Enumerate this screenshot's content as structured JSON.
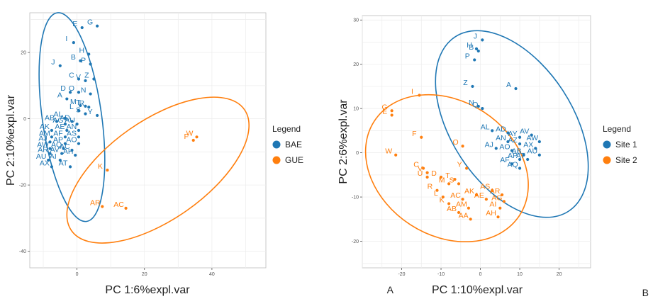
{
  "chart_data": [
    {
      "type": "scatter",
      "panel_label": "A",
      "xlabel": "PC 1:6%expl.var",
      "ylabel": "PC 2:10%expl.var",
      "xlim": [
        -14,
        56
      ],
      "ylim": [
        -45,
        32
      ],
      "x_ticks": [
        0,
        20,
        40
      ],
      "y_ticks": [
        -40,
        -20,
        0,
        20
      ],
      "grid": true,
      "legend": {
        "title": "Legend",
        "position": "right"
      },
      "series": [
        {
          "name": "BAE",
          "color": "#1f77b4",
          "points": [
            {
              "label": "E",
              "x": 1.5,
              "y": 27.5
            },
            {
              "label": "G",
              "x": 6.0,
              "y": 28.0
            },
            {
              "label": "I",
              "x": -1.0,
              "y": 23.0
            },
            {
              "label": "H",
              "x": 3.5,
              "y": 19.5
            },
            {
              "label": "B",
              "x": 1.0,
              "y": 17.5
            },
            {
              "label": "P",
              "x": 4.0,
              "y": 16.5
            },
            {
              "label": "J",
              "x": -5.0,
              "y": 16.0
            },
            {
              "label": "C",
              "x": 0.5,
              "y": 12.0
            },
            {
              "label": "V",
              "x": 2.5,
              "y": 11.5
            },
            {
              "label": "Z",
              "x": 5.0,
              "y": 12.0
            },
            {
              "label": "D",
              "x": -2.0,
              "y": 8.0
            },
            {
              "label": "O",
              "x": 0.5,
              "y": 8.0
            },
            {
              "label": "N",
              "x": 4.0,
              "y": 7.5
            },
            {
              "label": "A",
              "x": -3.0,
              "y": 6.0
            },
            {
              "label": "M",
              "x": 1.0,
              "y": 4.0
            },
            {
              "label": "T",
              "x": 2.5,
              "y": 3.8
            },
            {
              "label": "R",
              "x": 3.5,
              "y": 3.5
            },
            {
              "label": "L",
              "x": 0.5,
              "y": 2.5
            },
            {
              "label": "S",
              "x": 2.5,
              "y": 1.5
            },
            {
              "label": "Y",
              "x": 6.0,
              "y": 1.0
            },
            {
              "label": "AL",
              "x": -3.5,
              "y": 0.2
            },
            {
              "label": "AB",
              "x": -6.0,
              "y": -0.8
            },
            {
              "label": "AD",
              "x": -1.5,
              "y": -0.8
            },
            {
              "label": "AG",
              "x": -3.5,
              "y": -1.6
            },
            {
              "label": "AU",
              "x": 0.0,
              "y": -1.6
            },
            {
              "label": "AK",
              "x": -7.5,
              "y": -3.5
            },
            {
              "label": "AE",
              "x": -3.0,
              "y": -3.5
            },
            {
              "label": "AN",
              "x": 0.5,
              "y": -3.5
            },
            {
              "label": "AM",
              "x": -7.5,
              "y": -5.5
            },
            {
              "label": "AF",
              "x": -3.5,
              "y": -5.5
            },
            {
              "label": "AS",
              "x": 0.5,
              "y": -5.5
            },
            {
              "label": "AJ",
              "x": -8.0,
              "y": -7.0
            },
            {
              "label": "AP",
              "x": -3.5,
              "y": -7.5
            },
            {
              "label": "AO",
              "x": 0.5,
              "y": -7.5
            },
            {
              "label": "AW",
              "x": -8.0,
              "y": -9.0
            },
            {
              "label": "AQ",
              "x": -4.0,
              "y": -9.0
            },
            {
              "label": "AC",
              "x": -1.5,
              "y": -9.5
            },
            {
              "label": "AR",
              "x": -8.0,
              "y": -10.5
            },
            {
              "label": "AV",
              "x": -4.5,
              "y": -10.5
            },
            {
              "label": "AH",
              "x": -0.5,
              "y": -11.0
            },
            {
              "label": "AU",
              "x": -8.5,
              "y": -12.5
            },
            {
              "label": "AI",
              "x": -5.0,
              "y": -12.5
            },
            {
              "label": "AT",
              "x": -2.0,
              "y": -14.5
            },
            {
              "label": "AX",
              "x": -7.5,
              "y": -14.5
            }
          ]
        },
        {
          "name": "GUE",
          "color": "#ff7f0e",
          "points": [
            {
              "label": "W",
              "x": 35.5,
              "y": -5.5
            },
            {
              "label": "F",
              "x": 34.5,
              "y": -6.5
            },
            {
              "label": "K",
              "x": 9.0,
              "y": -15.5
            },
            {
              "label": "AC",
              "x": 14.5,
              "y": -27.0
            },
            {
              "label": "AR",
              "x": 7.5,
              "y": -26.5
            }
          ]
        }
      ],
      "ellipses": [
        {
          "series": "BAE",
          "cx": -1.5,
          "cy": 0.5,
          "rx": 8.8,
          "ry": 31.8,
          "angle": 8
        },
        {
          "series": "GUE",
          "cx": 24.0,
          "cy": -15.5,
          "rx": 31.3,
          "ry": 15.0,
          "angle": 35
        }
      ]
    },
    {
      "type": "scatter",
      "panel_label": "B",
      "xlabel": "PC 1:10%expl.var",
      "ylabel": "PC 2:6%expl.var",
      "xlim": [
        -30,
        28
      ],
      "ylim": [
        -26,
        31
      ],
      "x_ticks": [
        -20,
        -10,
        0,
        10,
        20
      ],
      "y_ticks": [
        -20,
        -10,
        0,
        10,
        20,
        30
      ],
      "grid": true,
      "legend": {
        "title": "Legend",
        "position": "right"
      },
      "series": [
        {
          "name": "Site 1",
          "color": "#1f77b4",
          "points": [
            {
              "label": "J",
              "x": 0.5,
              "y": 25.5
            },
            {
              "label": "H",
              "x": -1.0,
              "y": 23.5
            },
            {
              "label": "B",
              "x": -0.5,
              "y": 23.0
            },
            {
              "label": "P",
              "x": -1.5,
              "y": 21.0
            },
            {
              "label": "Z",
              "x": -2.0,
              "y": 15.0
            },
            {
              "label": "A",
              "x": 9.0,
              "y": 14.5
            },
            {
              "label": "N",
              "x": -0.5,
              "y": 10.5
            },
            {
              "label": "Q",
              "x": 0.5,
              "y": 10.0
            },
            {
              "label": "AL",
              "x": 3.0,
              "y": 5.0
            },
            {
              "label": "AD",
              "x": 7.0,
              "y": 4.5
            },
            {
              "label": "AY",
              "x": 10.0,
              "y": 3.5
            },
            {
              "label": "AV",
              "x": 13.0,
              "y": 4.0
            },
            {
              "label": "AN",
              "x": 7.0,
              "y": 2.5
            },
            {
              "label": "AZ",
              "x": 10.0,
              "y": 2.0
            },
            {
              "label": "AW",
              "x": 15.0,
              "y": 2.5
            },
            {
              "label": "AJ",
              "x": 4.0,
              "y": 1.0
            },
            {
              "label": "AO",
              "x": 8.0,
              "y": 0.5
            },
            {
              "label": "AX",
              "x": 14.0,
              "y": 1.0
            },
            {
              "label": "AB",
              "x": 11.0,
              "y": -0.5
            },
            {
              "label": "AU",
              "x": 15.0,
              "y": -0.5
            },
            {
              "label": "AP",
              "x": 10.0,
              "y": -1.5
            },
            {
              "label": "AT",
              "x": 12.0,
              "y": -1.5
            },
            {
              "label": "AF",
              "x": 8.0,
              "y": -2.5
            },
            {
              "label": "AQ",
              "x": 10.0,
              "y": -3.5
            }
          ]
        },
        {
          "name": "Site 2",
          "color": "#ff7f0e",
          "points": [
            {
              "label": "I",
              "x": -15.5,
              "y": 13.0
            },
            {
              "label": "G",
              "x": -22.5,
              "y": 9.5
            },
            {
              "label": "E",
              "x": -22.5,
              "y": 8.5
            },
            {
              "label": "F",
              "x": -15.0,
              "y": 3.5
            },
            {
              "label": "O",
              "x": -4.5,
              "y": 1.5
            },
            {
              "label": "W",
              "x": -21.5,
              "y": -0.5
            },
            {
              "label": "Y",
              "x": -3.5,
              "y": -3.5
            },
            {
              "label": "C",
              "x": -14.5,
              "y": -3.5
            },
            {
              "label": "V",
              "x": -13.5,
              "y": -4.5
            },
            {
              "label": "U",
              "x": -13.5,
              "y": -5.5
            },
            {
              "label": "D",
              "x": -10.0,
              "y": -5.5
            },
            {
              "label": "T",
              "x": -6.5,
              "y": -6.0
            },
            {
              "label": "M",
              "x": -8.0,
              "y": -7.0
            },
            {
              "label": "S",
              "x": -5.5,
              "y": -7.0
            },
            {
              "label": "AS",
              "x": 3.0,
              "y": -8.5
            },
            {
              "label": "R",
              "x": -11.0,
              "y": -8.5
            },
            {
              "label": "AK",
              "x": -1.0,
              "y": -9.5
            },
            {
              "label": "AR",
              "x": 5.5,
              "y": -9.5
            },
            {
              "label": "L",
              "x": -9.5,
              "y": -10.0
            },
            {
              "label": "AC",
              "x": -4.5,
              "y": -10.5
            },
            {
              "label": "AE",
              "x": 1.5,
              "y": -10.5
            },
            {
              "label": "AG",
              "x": 6.0,
              "y": -11.0
            },
            {
              "label": "K",
              "x": -8.0,
              "y": -11.5
            },
            {
              "label": "AM",
              "x": -3.0,
              "y": -12.5
            },
            {
              "label": "AI",
              "x": 5.0,
              "y": -12.5
            },
            {
              "label": "AB",
              "x": -5.5,
              "y": -13.5
            },
            {
              "label": "AH",
              "x": 4.5,
              "y": -14.5
            },
            {
              "label": "AA",
              "x": -2.5,
              "y": -15.0
            }
          ]
        }
      ],
      "ellipses": [
        {
          "series": "Site 1",
          "cx": 8.0,
          "cy": 6.5,
          "rx": 15.5,
          "ry": 23.5,
          "angle": 33
        },
        {
          "series": "Site 2",
          "cx": -8.5,
          "cy": -3.5,
          "rx": 22.0,
          "ry": 15.2,
          "angle": -33
        }
      ]
    }
  ]
}
